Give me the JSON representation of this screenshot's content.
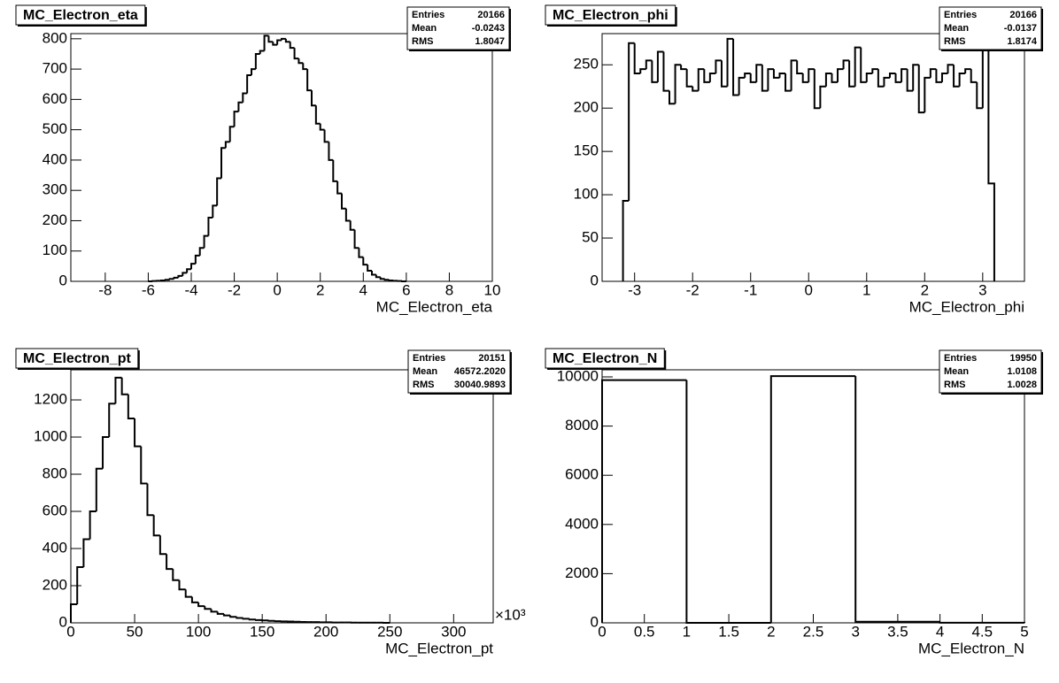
{
  "chart_data": [
    {
      "type": "histogram",
      "title": "MC_Electron_eta",
      "xlabel": "MC_Electron_eta",
      "bins": [
        -6,
        -5.8,
        -5.6,
        -5.4,
        -5.2,
        -5,
        -4.8,
        -4.6,
        -4.4,
        -4.2,
        -4,
        -3.8,
        -3.6,
        -3.4,
        -3.2,
        -3,
        -2.8,
        -2.6,
        -2.4,
        -2.2,
        -2,
        -1.8,
        -1.6,
        -1.4,
        -1.2,
        -1,
        -0.8,
        -0.6,
        -0.4,
        -0.2,
        0,
        0.2,
        0.4,
        0.6,
        0.8,
        1,
        1.2,
        1.4,
        1.6,
        1.8,
        2,
        2.2,
        2.4,
        2.6,
        2.8,
        3,
        3.2,
        3.4,
        3.6,
        3.8,
        4,
        4.2,
        4.4,
        4.6,
        4.8,
        5,
        5.2,
        5.4,
        5.6,
        5.8,
        6
      ],
      "values": [
        0,
        1,
        2,
        3,
        5,
        8,
        12,
        18,
        28,
        40,
        58,
        85,
        110,
        150,
        210,
        250,
        340,
        440,
        460,
        510,
        560,
        590,
        620,
        680,
        700,
        750,
        760,
        810,
        790,
        780,
        795,
        800,
        790,
        770,
        735,
        720,
        700,
        630,
        580,
        520,
        500,
        460,
        400,
        330,
        290,
        240,
        200,
        170,
        110,
        80,
        55,
        35,
        22,
        14,
        8,
        5,
        3,
        2,
        1,
        0
      ],
      "xlim": [
        -9.6,
        10
      ],
      "xticks": [
        -8,
        -6,
        -4,
        -2,
        0,
        2,
        4,
        6,
        8,
        10
      ],
      "ylim": [
        0,
        817
      ],
      "yticks": [
        0,
        100,
        200,
        300,
        400,
        500,
        600,
        700,
        800
      ],
      "color": "#000000",
      "stats": [
        {
          "label": "Entries",
          "value": 20166
        },
        {
          "label": "Mean",
          "value": -0.0243
        },
        {
          "label": "RMS",
          "value": 1.8047
        }
      ]
    },
    {
      "type": "histogram",
      "title": "MC_Electron_phi",
      "xlabel": "MC_Electron_phi",
      "bins": [
        -3.2,
        -3.1,
        -3,
        -2.9,
        -2.8,
        -2.7,
        -2.6,
        -2.5,
        -2.4,
        -2.3,
        -2.2,
        -2.1,
        -2,
        -1.9,
        -1.8,
        -1.7,
        -1.6,
        -1.5,
        -1.4,
        -1.3,
        -1.2,
        -1.1,
        -1,
        -0.9,
        -0.8,
        -0.7,
        -0.6,
        -0.5,
        -0.4,
        -0.3,
        -0.2,
        -0.1,
        0,
        0.1,
        0.2,
        0.3,
        0.4,
        0.5,
        0.6,
        0.7,
        0.8,
        0.9,
        1,
        1.1,
        1.2,
        1.3,
        1.4,
        1.5,
        1.6,
        1.7,
        1.8,
        1.9,
        2,
        2.1,
        2.2,
        2.3,
        2.4,
        2.5,
        2.6,
        2.7,
        2.8,
        2.9,
        3,
        3.1,
        3.2
      ],
      "values": [
        93,
        275,
        240,
        245,
        255,
        230,
        265,
        220,
        205,
        250,
        245,
        225,
        220,
        245,
        230,
        240,
        255,
        225,
        280,
        215,
        235,
        240,
        230,
        250,
        220,
        245,
        235,
        240,
        220,
        255,
        240,
        230,
        245,
        200,
        225,
        240,
        230,
        245,
        255,
        225,
        270,
        230,
        240,
        245,
        225,
        235,
        240,
        230,
        245,
        220,
        250,
        195,
        235,
        245,
        230,
        240,
        250,
        225,
        240,
        245,
        230,
        200,
        280,
        113
      ],
      "xlim": [
        -3.56,
        3.72
      ],
      "xticks": [
        -3,
        -2,
        -1,
        0,
        1,
        2,
        3
      ],
      "ylim": [
        0,
        286
      ],
      "yticks": [
        0,
        50,
        100,
        150,
        200,
        250
      ],
      "color": "#000000",
      "stats": [
        {
          "label": "Entries",
          "value": 20166
        },
        {
          "label": "Mean",
          "value": -0.0137
        },
        {
          "label": "RMS",
          "value": 1.8174
        }
      ]
    },
    {
      "type": "histogram",
      "title": "MC_Electron_pt",
      "xlabel": "MC_Electron_pt",
      "x_multiplier": "×10³",
      "bins": [
        0,
        5,
        10,
        15,
        20,
        25,
        30,
        35,
        40,
        45,
        50,
        55,
        60,
        65,
        70,
        75,
        80,
        85,
        90,
        95,
        100,
        105,
        110,
        115,
        120,
        125,
        130,
        135,
        140,
        145,
        150,
        155,
        160,
        165,
        170,
        175,
        180,
        185,
        190,
        195,
        200,
        205,
        210,
        215,
        220,
        225,
        230,
        235,
        240,
        245,
        250
      ],
      "values": [
        100,
        300,
        450,
        600,
        830,
        1000,
        1180,
        1320,
        1230,
        1100,
        950,
        750,
        580,
        470,
        370,
        290,
        230,
        180,
        140,
        110,
        90,
        75,
        60,
        48,
        40,
        32,
        26,
        22,
        18,
        15,
        13,
        11,
        9,
        8,
        7,
        6,
        5,
        4,
        4,
        3,
        3,
        2,
        2,
        2,
        1,
        1,
        1,
        1,
        1,
        0
      ],
      "xlim": [
        0,
        331
      ],
      "xticks": [
        0,
        50,
        100,
        150,
        200,
        250,
        300
      ],
      "ylim": [
        0,
        1362
      ],
      "yticks": [
        0,
        200,
        400,
        600,
        800,
        1000,
        1200
      ],
      "color": "#000000",
      "stats": [
        {
          "label": "Entries",
          "value": 20151
        },
        {
          "label": "Mean",
          "value": "46572.2020"
        },
        {
          "label": "RMS",
          "value": "30040.9893"
        }
      ]
    },
    {
      "type": "histogram",
      "title": "MC_Electron_N",
      "xlabel": "MC_Electron_N",
      "bins": [
        0,
        1,
        2,
        3,
        4,
        5
      ],
      "values": [
        9870,
        0,
        10030,
        45,
        5
      ],
      "xlim": [
        0,
        5
      ],
      "xticks": [
        0,
        0.5,
        1,
        1.5,
        2,
        2.5,
        3,
        3.5,
        4,
        4.5,
        5
      ],
      "ylim": [
        0,
        10288
      ],
      "yticks": [
        0,
        2000,
        4000,
        6000,
        8000,
        10000
      ],
      "color": "#000000",
      "stats": [
        {
          "label": "Entries",
          "value": 19950
        },
        {
          "label": "Mean",
          "value": 1.0108
        },
        {
          "label": "RMS",
          "value": 1.0028
        }
      ]
    }
  ]
}
